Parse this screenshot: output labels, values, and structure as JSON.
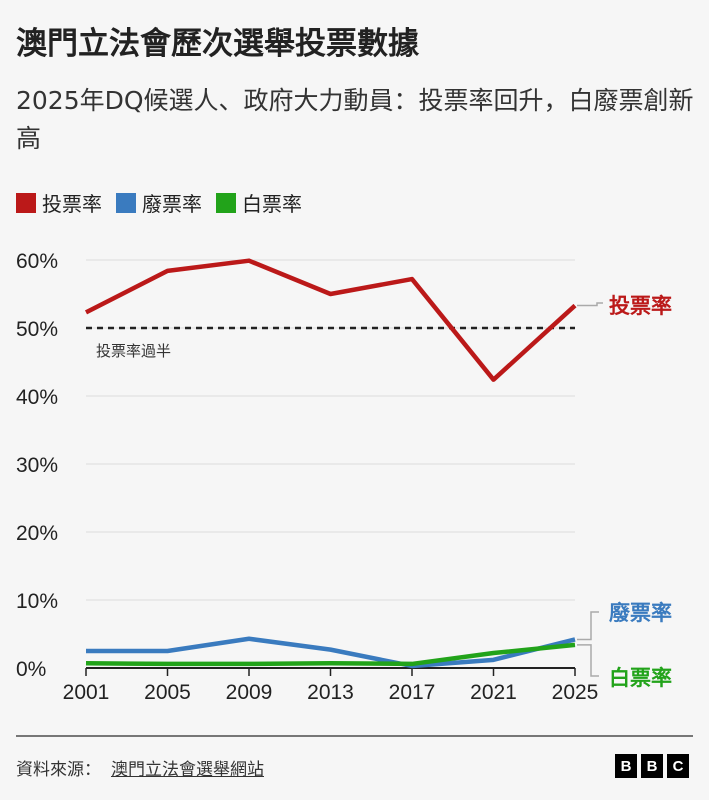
{
  "title": "澳門立法會歷次選舉投票數據",
  "subtitle": "2025年DQ候選人、政府大力動員：投票率回升，白廢票創新高",
  "footer": {
    "source_label": "資料來源：",
    "source_link": "澳門立法會選舉網站",
    "logo": "BBC"
  },
  "chart_data": {
    "type": "line",
    "x": [
      2001,
      2005,
      2009,
      2013,
      2017,
      2021,
      2025
    ],
    "x_ticks": [
      "2001",
      "2005",
      "2009",
      "2013",
      "2017",
      "2021",
      "2025"
    ],
    "y_ticks": [
      "0%",
      "10%",
      "20%",
      "30%",
      "40%",
      "50%",
      "60%"
    ],
    "ylim": [
      0,
      60
    ],
    "grid": true,
    "legend_placement": "top-left",
    "series": [
      {
        "name": "投票率",
        "color": "#bb1919",
        "values": [
          52.3,
          58.4,
          59.9,
          55.0,
          57.2,
          42.4,
          53.3
        ]
      },
      {
        "name": "廢票率",
        "color": "#3a7bbf",
        "values": [
          2.5,
          2.5,
          4.3,
          2.7,
          0.3,
          1.2,
          4.2
        ]
      },
      {
        "name": "白票率",
        "color": "#22a31a",
        "values": [
          0.7,
          0.6,
          0.6,
          0.7,
          0.6,
          2.2,
          3.4
        ]
      }
    ],
    "reference_line": {
      "value": 50,
      "label": "投票率過半"
    }
  }
}
